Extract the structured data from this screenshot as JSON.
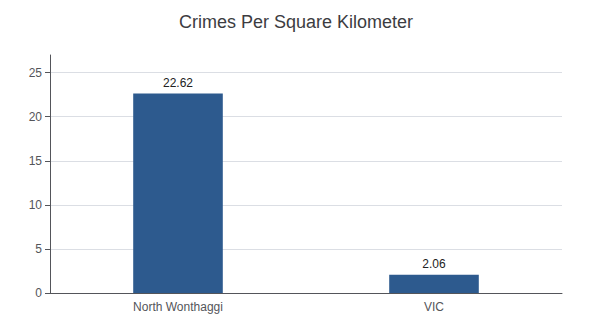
{
  "chart_data": {
    "type": "bar",
    "title": "Crimes Per Square Kilometer",
    "categories": [
      "North Wonthaggi",
      "VIC"
    ],
    "values": [
      22.62,
      2.06
    ],
    "color": "#2d5a8e",
    "ylim": [
      0,
      27
    ],
    "yticks": [
      0,
      5,
      10,
      15,
      20,
      25
    ],
    "grid": true,
    "data_labels": true
  }
}
